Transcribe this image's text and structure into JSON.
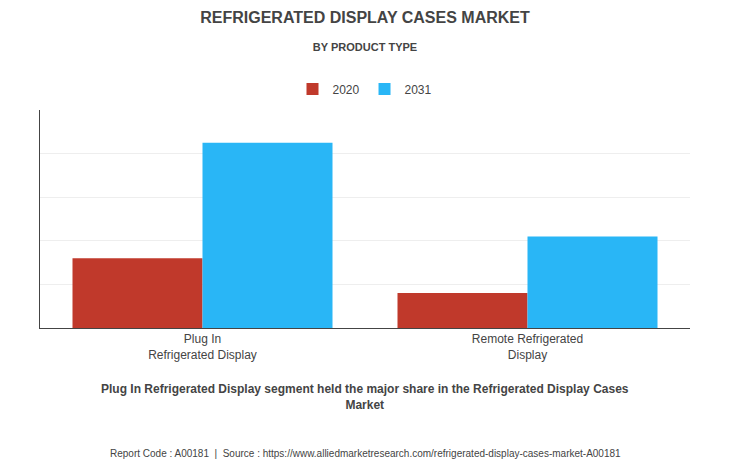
{
  "chart_data": {
    "type": "bar",
    "title": "REFRIGERATED DISPLAY CASES MARKET",
    "subtitle": "BY PRODUCT TYPE",
    "categories": [
      "Plug In\nRefrigerated Display",
      "Remote Refrigerated\nDisplay"
    ],
    "series": [
      {
        "name": "2020",
        "color": "#C0392B",
        "values": [
          3.2,
          1.6
        ]
      },
      {
        "name": "2031",
        "color": "#29B6F6",
        "values": [
          8.5,
          4.2
        ]
      }
    ],
    "ylim": [
      0,
      10
    ],
    "yticks": [
      0,
      2,
      4,
      6,
      8,
      10
    ],
    "grid": true,
    "legend": "top",
    "tick_labels": "x",
    "annotations": [
      "Plug In Refrigerated Display segment held the major share in the Refrigerated Display Cases\nMarket",
      "Report Code : A00181  |  Source : https://www.alliedmarketresearch.com/refrigerated-display-cases-market-A00181"
    ]
  }
}
